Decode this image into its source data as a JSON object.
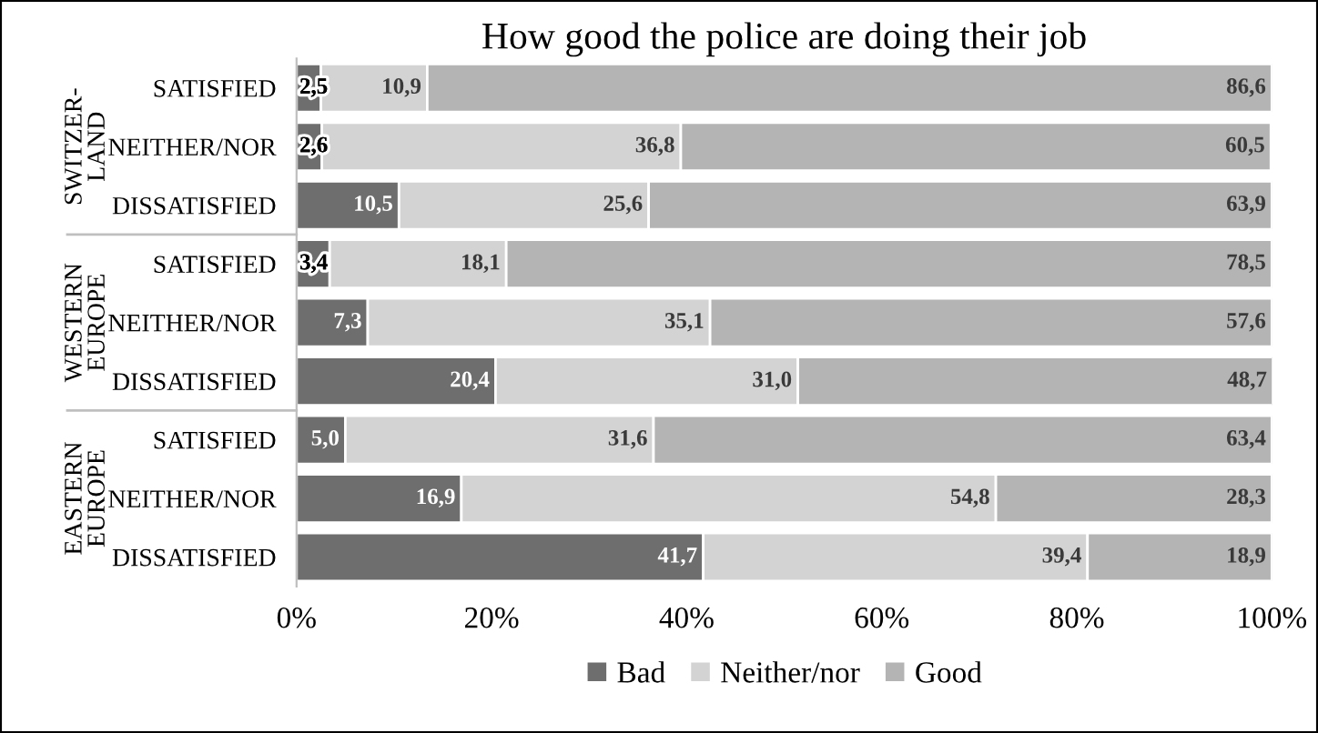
{
  "chart_data": {
    "type": "bar",
    "orientation": "horizontal",
    "stacked": true,
    "title": "How good the police are doing their job",
    "categories": [
      "SATISFIED",
      "NEITHER/NOR",
      "DISSATISFIED",
      "SATISFIED",
      "NEITHER/NOR",
      "DISSATISFIED",
      "SATISFIED",
      "NEITHER/NOR",
      "DISSATISFIED"
    ],
    "annotations": [
      "SWITZER-\nLAND",
      "WESTERN\nEUROPE",
      "EASTERN\nEUROPE"
    ],
    "series": [
      {
        "name": "Bad",
        "color": "#6e6e6e",
        "values": [
          2.5,
          2.6,
          10.5,
          3.4,
          7.3,
          20.4,
          5.0,
          16.9,
          41.7
        ],
        "value_labels": [
          "2,5",
          "2,6",
          "10,5",
          "3,4",
          "7,3",
          "20,4",
          "5,0",
          "16,9",
          "41,7"
        ]
      },
      {
        "name": "Neither/nor",
        "color": "#d3d3d3",
        "values": [
          10.9,
          36.8,
          25.6,
          18.1,
          35.1,
          31.0,
          31.6,
          54.8,
          39.4
        ],
        "value_labels": [
          "10,9",
          "36,8",
          "25,6",
          "18,1",
          "35,1",
          "31,0",
          "31,6",
          "54,8",
          "39,4"
        ]
      },
      {
        "name": "Good",
        "color": "#b4b4b4",
        "values": [
          86.6,
          60.5,
          63.9,
          78.5,
          57.6,
          48.7,
          63.4,
          28.3,
          18.9
        ],
        "value_labels": [
          "86,6",
          "60,5",
          "63,9",
          "78,5",
          "57,6",
          "48,7",
          "63,4",
          "28,3",
          "18,9"
        ]
      }
    ],
    "xlim": [
      0,
      100
    ],
    "xticks": [
      {
        "value": 0,
        "label": "0%"
      },
      {
        "value": 20,
        "label": "20%"
      },
      {
        "value": 40,
        "label": "40%"
      },
      {
        "value": 60,
        "label": "60%"
      },
      {
        "value": 80,
        "label": "80%"
      },
      {
        "value": 100,
        "label": "100%"
      }
    ],
    "legend": "bottom",
    "grid": false
  }
}
